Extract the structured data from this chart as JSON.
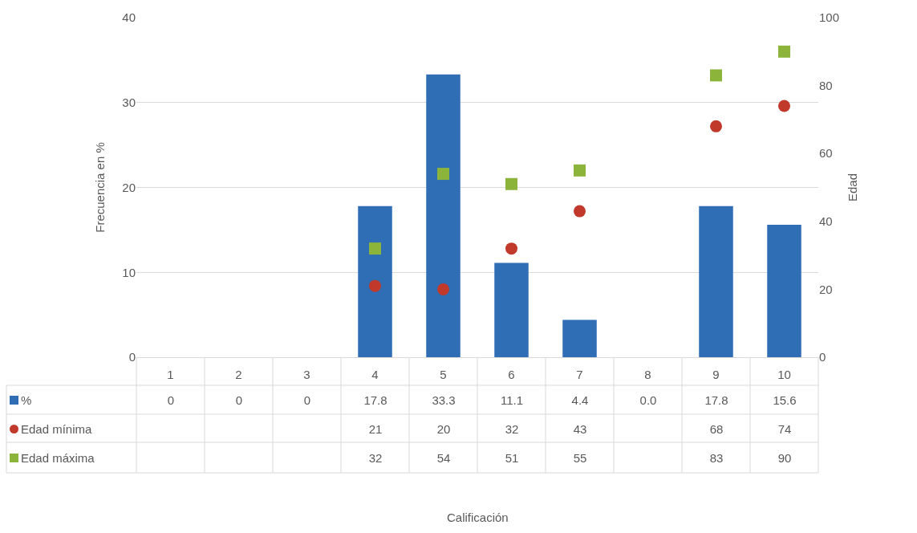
{
  "chart_data": {
    "type": "bar",
    "annotations": [
      "Calificación"
    ],
    "ylabel": "Frecuencia en %",
    "y2label": "Edad",
    "categories": [
      "1",
      "2",
      "3",
      "4",
      "5",
      "6",
      "7",
      "8",
      "9",
      "10"
    ],
    "series": [
      {
        "name": "%",
        "color": "#2f6db5",
        "values": [
          0,
          0,
          0,
          17.8,
          33.3,
          11.1,
          4.4,
          0.0,
          17.8,
          15.6
        ],
        "value_labels": [
          "0",
          "0",
          "0",
          "17.8",
          "33.3",
          "11.1",
          "4.4",
          "0.0",
          "17.8",
          "15.6"
        ]
      },
      {
        "name": "Edad mínima",
        "type": "scatter",
        "axis": "y2",
        "marker": "circle",
        "color": "#c0392b",
        "values": [
          null,
          null,
          null,
          21,
          20,
          32,
          43,
          null,
          68,
          74
        ],
        "value_labels": [
          null,
          null,
          null,
          "21",
          "20",
          "32",
          "43",
          null,
          "68",
          "74"
        ]
      },
      {
        "name": "Edad máxima",
        "type": "scatter",
        "axis": "y2",
        "marker": "square",
        "color": "#8db43a",
        "values": [
          null,
          null,
          null,
          32,
          54,
          51,
          55,
          null,
          83,
          90
        ],
        "value_labels": [
          null,
          null,
          null,
          "32",
          "54",
          "51",
          "55",
          null,
          "83",
          "90"
        ]
      }
    ],
    "ylim": [
      0,
      40
    ],
    "yticks": [
      0,
      10,
      20,
      30,
      40
    ],
    "y2lim": [
      0,
      100
    ],
    "y2ticks": [
      0,
      20,
      40,
      60,
      80,
      100
    ],
    "grid": "y",
    "legend": "bottom left"
  }
}
